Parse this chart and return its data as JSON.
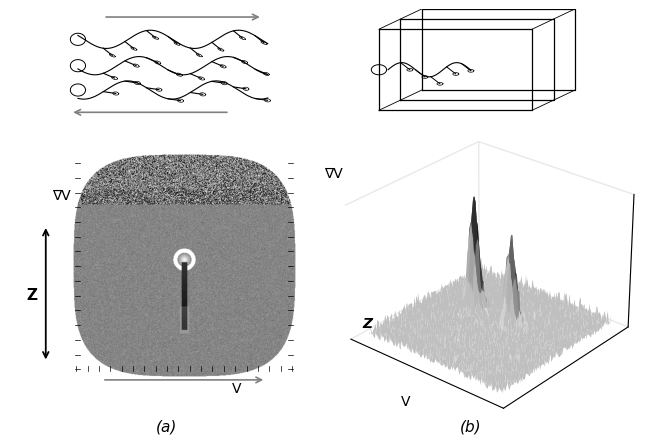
{
  "fig_width": 6.66,
  "fig_height": 4.46,
  "dpi": 100,
  "bg_color": "#ffffff",
  "panel_a": {
    "label": "(a)",
    "xlabel": "V",
    "ylabel": "∇V",
    "zlabel": "Z"
  },
  "panel_b": {
    "label": "(b)",
    "xlabel": "V",
    "ylabel": "∇V",
    "zlabel": "Z"
  },
  "font_size_label": 10,
  "font_size_axis": 10,
  "font_size_panel": 11
}
